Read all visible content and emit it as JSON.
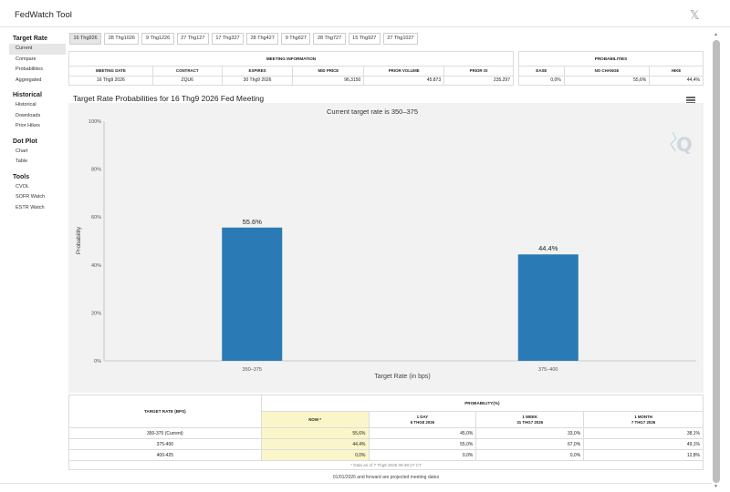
{
  "app": {
    "title": "FedWatch Tool"
  },
  "sidebar": {
    "sections": [
      {
        "heading": "Target Rate",
        "items": [
          "Current",
          "Compare",
          "Probabilities",
          "Aggregated"
        ]
      },
      {
        "heading": "Historical",
        "items": [
          "Historical",
          "Downloads",
          "Prior Hikes"
        ]
      },
      {
        "heading": "Dot Plot",
        "items": [
          "Chart",
          "Table"
        ]
      },
      {
        "heading": "Tools",
        "items": [
          "CVOL",
          "SOFR Watch",
          "ESTR Watch"
        ]
      }
    ]
  },
  "tabs": [
    "16 Thg926",
    "28 Thg1026",
    "9 Thg1226",
    "27 Thg127",
    "17 Thg327",
    "28 Thg427",
    "9 Thg627",
    "28 Thg727",
    "15 Thg927",
    "27 Thg1027"
  ],
  "meeting_info": {
    "section_title": "MEETING INFORMATION",
    "headers": [
      "MEETING DATE",
      "CONTRACT",
      "EXPIRES",
      "MID PRICE",
      "PRIOR VOLUME",
      "PRIOR OI"
    ],
    "values": [
      "16 Thg9 2026",
      "ZQU6",
      "30 Thg9 2026",
      "96,3150",
      "45.873",
      "235.297"
    ]
  },
  "probabilities": {
    "section_title": "PROBABILITIES",
    "headers": [
      "EASE",
      "NO CHANGE",
      "HIKE"
    ],
    "values": [
      "0,0%",
      "55,6%",
      "44,4%"
    ]
  },
  "chart": {
    "title": "Target Rate Probabilities for 16 Thg9 2026 Fed Meeting",
    "subtitle": "Current target rate is 350–375",
    "watermark": "Q"
  },
  "chart_data": {
    "type": "bar",
    "title": "Target Rate Probabilities for 16 Thg9 2026 Fed Meeting",
    "subtitle": "Current target rate is 350–375",
    "categories": [
      "350–375",
      "375–400"
    ],
    "values": [
      55.6,
      44.4
    ],
    "data_labels": [
      "55.6%",
      "44.4%"
    ],
    "xlabel": "Target Rate (in bps)",
    "ylabel": "Probability",
    "ylim": [
      0,
      100
    ],
    "yticks": [
      0,
      20,
      40,
      60,
      80,
      100
    ],
    "ytick_labels": [
      "0%",
      "20%",
      "40%",
      "60%",
      "80%",
      "100%"
    ],
    "grid": false,
    "bar_color": "#2a7ab5"
  },
  "bottom_table": {
    "col1_header": "TARGET RATE (BPS)",
    "group_header": "PROBABILITY(%)",
    "sub_headers": [
      {
        "l1": "NOW *",
        "l2": ""
      },
      {
        "l1": "1 DAY",
        "l2": "6 THG8 2026"
      },
      {
        "l1": "1 WEEK",
        "l2": "31 THG7 2026"
      },
      {
        "l1": "1 MONTH",
        "l2": "7 THG7 2026"
      }
    ],
    "rows": [
      {
        "rate": "350-375 (Current)",
        "now": "55,6%",
        "day": "45,0%",
        "week": "33,0%",
        "month": "38,1%"
      },
      {
        "rate": "375-400",
        "now": "44,4%",
        "day": "55,0%",
        "week": "67,0%",
        "month": "49,1%"
      },
      {
        "rate": "400-425",
        "now": "0,0%",
        "day": "0,0%",
        "week": "0,0%",
        "month": "12,8%"
      }
    ],
    "note": "* Data as of 7 Thg8 2026 09:49:27 CT"
  },
  "footer": "01/01/2026 and forward are projected meeting dates",
  "colors": {
    "accent_bar": "#2a7ab5",
    "highlight": "#fbf6c9",
    "tab_active": "#e5e5e5"
  }
}
